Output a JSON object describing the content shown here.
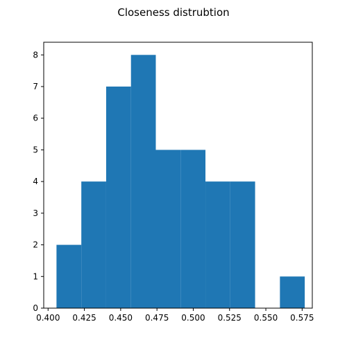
{
  "chart_data": {
    "type": "bar",
    "title": "Closeness distrubtion",
    "xlabel": "",
    "ylabel": "",
    "bin_edges": [
      0.4058,
      0.4229,
      0.44,
      0.4571,
      0.4742,
      0.4913,
      0.5084,
      0.5255,
      0.5426,
      0.5597,
      0.5768
    ],
    "values": [
      2,
      4,
      7,
      8,
      5,
      5,
      4,
      4,
      0,
      1
    ],
    "xlim": [
      0.397,
      0.582
    ],
    "ylim": [
      0,
      8.4
    ],
    "x_ticks": [
      0.4,
      0.425,
      0.45,
      0.475,
      0.5,
      0.525,
      0.55,
      0.575
    ],
    "x_tick_labels": [
      "0.400",
      "0.425",
      "0.450",
      "0.475",
      "0.500",
      "0.525",
      "0.550",
      "0.575"
    ],
    "y_ticks": [
      0,
      1,
      2,
      3,
      4,
      5,
      6,
      7,
      8
    ],
    "y_tick_labels": [
      "0",
      "1",
      "2",
      "3",
      "4",
      "5",
      "6",
      "7",
      "8"
    ],
    "grid": false,
    "bar_color": "#1f77b4"
  }
}
